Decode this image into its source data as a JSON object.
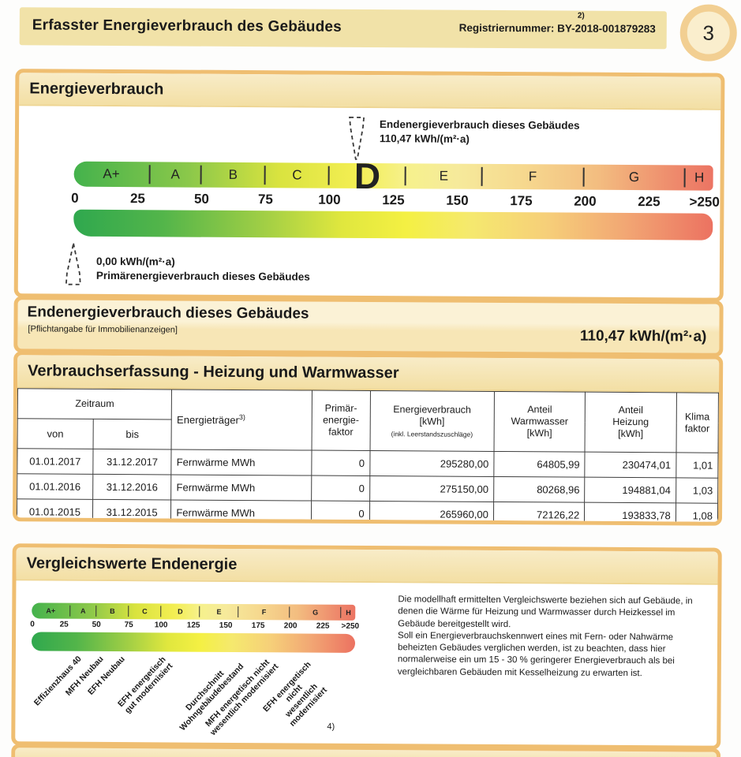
{
  "page_header": {
    "title": "Erfasster Energieverbrauch des Gebäudes",
    "footnote": "2)",
    "registration": "Registriernummer: BY-2018-001879283",
    "page_number": "3"
  },
  "energy_section": {
    "title": "Energieverbrauch",
    "end_label_line1": "Endenergieverbrauch dieses Gebäudes",
    "end_label_line2": "110,47 kWh/(m²·a)",
    "primary_label_line1": "0,00 kWh/(m²·a)",
    "primary_label_line2": "Primärenergieverbrauch dieses Gebäudes",
    "scale": {
      "classes": [
        "A+",
        "A",
        "B",
        "C",
        "D",
        "E",
        "F",
        "G",
        "H"
      ],
      "current_class": "D",
      "ticks": [
        "0",
        "25",
        "50",
        "75",
        "100",
        "125",
        "150",
        "175",
        "200",
        "225",
        ">250"
      ],
      "end_value": 110.47,
      "primary_value": 0,
      "max": 250
    }
  },
  "endenergy_box": {
    "title": "Endenergieverbrauch dieses Gebäudes",
    "subtitle": "[Pflichtangabe für Immobilienanzeigen]",
    "value": "110,47 kWh/(m²·a)"
  },
  "consumption_table": {
    "title": "Verbrauchserfassung - Heizung und Warmwasser",
    "headers": {
      "zeitraum": "Zeitraum",
      "von": "von",
      "bis": "bis",
      "energietraeger": "Energieträger",
      "energietraeger_footnote": "3)",
      "primaerfaktor": "Primär-\nenergie-\nfaktor",
      "energieverbrauch": "Energieverbrauch\n[kWh]",
      "energieverbrauch_note": "(inkl. Leerstandszuschläge)",
      "anteil_warmwasser": "Anteil\nWarmwasser\n[kWh]",
      "anteil_heizung": "Anteil\nHeizung\n[kWh]",
      "klimafaktor": "Klima\nfaktor"
    },
    "rows": [
      {
        "von": "01.01.2017",
        "bis": "31.12.2017",
        "energietraeger": "Fernwärme MWh",
        "primaerfaktor": "0",
        "energieverbrauch": "295280,00",
        "anteil_warmwasser": "64805,99",
        "anteil_heizung": "230474,01",
        "klimafaktor": "1,01"
      },
      {
        "von": "01.01.2016",
        "bis": "31.12.2016",
        "energietraeger": "Fernwärme MWh",
        "primaerfaktor": "0",
        "energieverbrauch": "275150,00",
        "anteil_warmwasser": "80268,96",
        "anteil_heizung": "194881,04",
        "klimafaktor": "1,03"
      },
      {
        "von": "01.01.2015",
        "bis": "31.12.2015",
        "energietraeger": "Fernwärme MWh",
        "primaerfaktor": "0",
        "energieverbrauch": "265960,00",
        "anteil_warmwasser": "72126,22",
        "anteil_heizung": "193833,78",
        "klimafaktor": "1,08"
      }
    ]
  },
  "comparison_section": {
    "title": "Vergleichswerte Endenergie",
    "footnote": "4)",
    "labels": [
      {
        "text": "Effizienzhaus 40",
        "value": 35
      },
      {
        "text": "MFH Neubau",
        "value": 52
      },
      {
        "text": "EFH Neubau",
        "value": 68
      },
      {
        "text": "EFH energetisch\ngut modernisiert",
        "value": 100
      },
      {
        "text": "Durchschnitt\nWohngebäudebestand",
        "value": 155
      },
      {
        "text": "MFH energetisch nicht\nwesentlich modernisiert",
        "value": 182
      },
      {
        "text": "EFH energetisch nicht\nwesentlich modernisiert",
        "value": 215
      }
    ],
    "paragraph1": "Die modellhaft ermittelten Vergleichswerte beziehen sich auf Gebäude, in denen die Wärme für Heizung und Warmwasser durch Heizkessel im Gebäude bereitgestellt wird.",
    "paragraph2": "Soll ein Energieverbrauchskennwert eines mit Fern- oder Nahwärme beheizten Gebäudes verglichen werden, ist zu beachten, dass hier normalerweise ein um 15 - 30 % geringerer Energieverbrauch als bei vergleichbaren Gebäuden mit Kesselheizung zu erwarten ist."
  },
  "colors": {
    "box_border": "#efbe71",
    "band_fill": "#f5e3ae",
    "header_band": "#f1e2a8",
    "beige_fill": "#f8e9c2",
    "scale_green": "#2fa84e",
    "scale_yellow": "#f2ee41",
    "scale_red": "#ec7161"
  }
}
